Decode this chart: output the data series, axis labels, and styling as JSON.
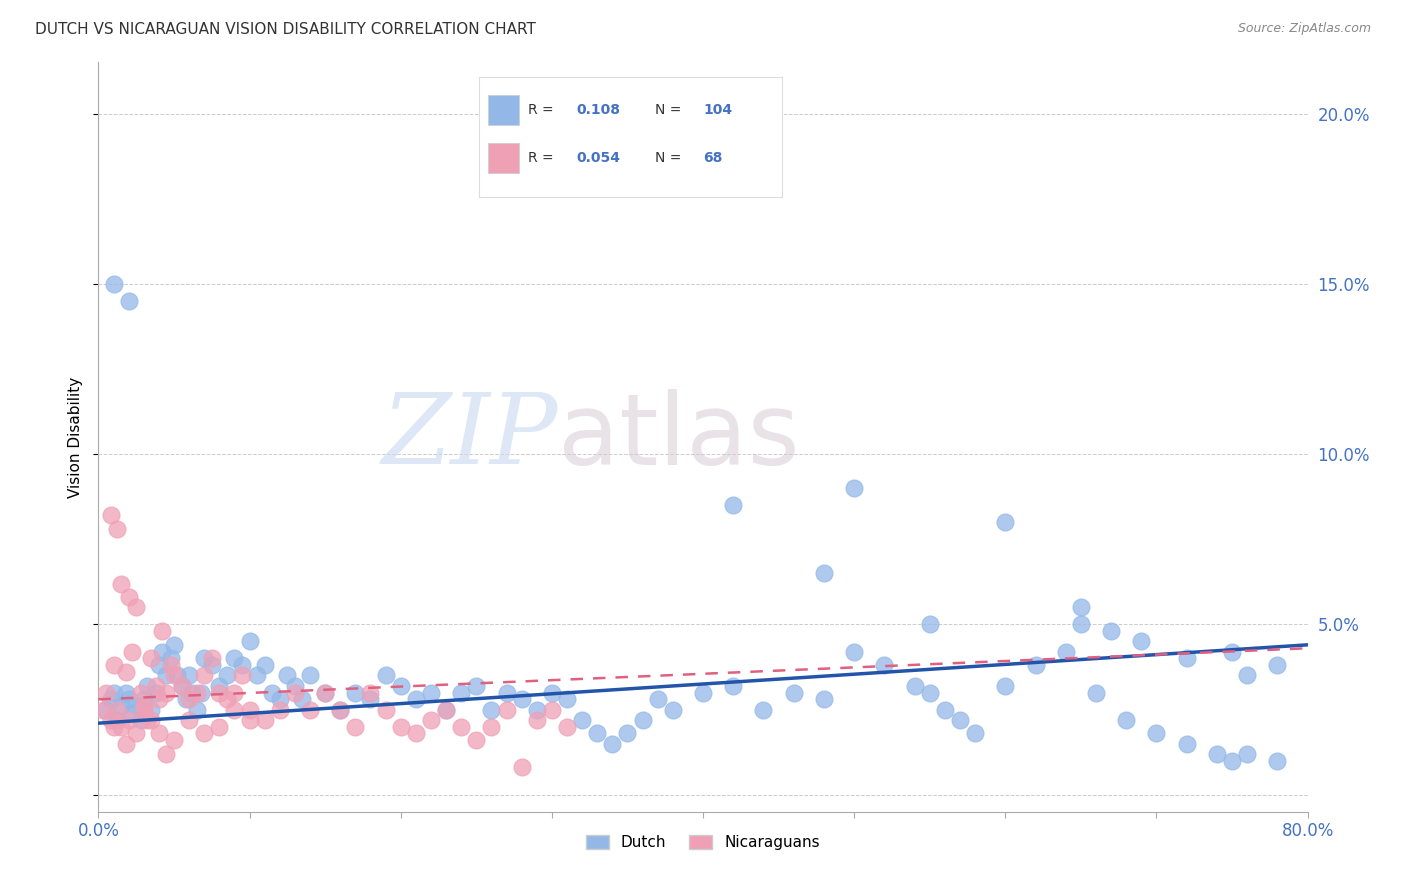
{
  "title": "DUTCH VS NICARAGUAN VISION DISABILITY CORRELATION CHART",
  "source": "Source: ZipAtlas.com",
  "ylabel": "Vision Disability",
  "xlim": [
    0.0,
    0.8
  ],
  "ylim": [
    -0.005,
    0.215
  ],
  "xticks": [
    0.0,
    0.1,
    0.2,
    0.3,
    0.4,
    0.5,
    0.6,
    0.7,
    0.8
  ],
  "yticks": [
    0.0,
    0.05,
    0.1,
    0.15,
    0.2
  ],
  "yticklabels_right": [
    "",
    "5.0%",
    "10.0%",
    "15.0%",
    "20.0%"
  ],
  "dutch_color": "#93b8e8",
  "nicaraguan_color": "#f0a0b5",
  "dutch_R": 0.108,
  "dutch_N": 104,
  "nicaraguan_R": 0.054,
  "nicaraguan_N": 68,
  "legend_label_blue": "Dutch",
  "legend_label_pink": "Nicaraguans",
  "watermark_zip": "ZIP",
  "watermark_atlas": "atlas",
  "axis_color": "#4472c4",
  "background_color": "#ffffff",
  "grid_color": "#cccccc",
  "dutch_line_x0": 0.0,
  "dutch_line_y0": 0.021,
  "dutch_line_x1": 0.8,
  "dutch_line_y1": 0.044,
  "nic_line_x0": 0.0,
  "nic_line_y0": 0.028,
  "nic_line_x1": 0.8,
  "nic_line_y1": 0.043,
  "dutch_scatter_x": [
    0.005,
    0.008,
    0.01,
    0.012,
    0.015,
    0.018,
    0.02,
    0.022,
    0.025,
    0.028,
    0.03,
    0.032,
    0.035,
    0.038,
    0.04,
    0.042,
    0.045,
    0.048,
    0.05,
    0.052,
    0.055,
    0.058,
    0.06,
    0.062,
    0.065,
    0.068,
    0.07,
    0.075,
    0.08,
    0.085,
    0.09,
    0.095,
    0.1,
    0.105,
    0.11,
    0.115,
    0.12,
    0.125,
    0.13,
    0.135,
    0.14,
    0.15,
    0.16,
    0.17,
    0.18,
    0.19,
    0.2,
    0.21,
    0.22,
    0.23,
    0.24,
    0.25,
    0.26,
    0.27,
    0.28,
    0.29,
    0.3,
    0.31,
    0.32,
    0.33,
    0.34,
    0.35,
    0.36,
    0.37,
    0.38,
    0.4,
    0.42,
    0.44,
    0.46,
    0.48,
    0.5,
    0.52,
    0.54,
    0.55,
    0.56,
    0.57,
    0.58,
    0.6,
    0.62,
    0.64,
    0.65,
    0.66,
    0.68,
    0.7,
    0.72,
    0.74,
    0.75,
    0.76,
    0.78,
    0.42,
    0.48,
    0.5,
    0.55,
    0.6,
    0.65,
    0.67,
    0.69,
    0.72,
    0.75,
    0.76,
    0.78,
    0.01,
    0.02
  ],
  "dutch_scatter_y": [
    0.025,
    0.028,
    0.03,
    0.022,
    0.026,
    0.03,
    0.028,
    0.024,
    0.026,
    0.022,
    0.028,
    0.032,
    0.025,
    0.03,
    0.038,
    0.042,
    0.035,
    0.04,
    0.044,
    0.035,
    0.032,
    0.028,
    0.035,
    0.03,
    0.025,
    0.03,
    0.04,
    0.038,
    0.032,
    0.035,
    0.04,
    0.038,
    0.045,
    0.035,
    0.038,
    0.03,
    0.028,
    0.035,
    0.032,
    0.028,
    0.035,
    0.03,
    0.025,
    0.03,
    0.028,
    0.035,
    0.032,
    0.028,
    0.03,
    0.025,
    0.03,
    0.032,
    0.025,
    0.03,
    0.028,
    0.025,
    0.03,
    0.028,
    0.022,
    0.018,
    0.015,
    0.018,
    0.022,
    0.028,
    0.025,
    0.03,
    0.032,
    0.025,
    0.03,
    0.028,
    0.042,
    0.038,
    0.032,
    0.03,
    0.025,
    0.022,
    0.018,
    0.032,
    0.038,
    0.042,
    0.05,
    0.03,
    0.022,
    0.018,
    0.015,
    0.012,
    0.01,
    0.012,
    0.01,
    0.085,
    0.065,
    0.09,
    0.05,
    0.08,
    0.055,
    0.048,
    0.045,
    0.04,
    0.042,
    0.035,
    0.038,
    0.15,
    0.145
  ],
  "nicaraguan_scatter_x": [
    0.003,
    0.005,
    0.008,
    0.01,
    0.012,
    0.015,
    0.018,
    0.02,
    0.022,
    0.025,
    0.028,
    0.03,
    0.032,
    0.035,
    0.038,
    0.04,
    0.042,
    0.045,
    0.048,
    0.05,
    0.055,
    0.06,
    0.065,
    0.07,
    0.075,
    0.08,
    0.085,
    0.09,
    0.095,
    0.1,
    0.11,
    0.12,
    0.13,
    0.14,
    0.15,
    0.16,
    0.17,
    0.18,
    0.19,
    0.2,
    0.21,
    0.22,
    0.23,
    0.24,
    0.25,
    0.26,
    0.27,
    0.28,
    0.29,
    0.3,
    0.008,
    0.01,
    0.012,
    0.015,
    0.018,
    0.02,
    0.025,
    0.03,
    0.035,
    0.04,
    0.045,
    0.05,
    0.06,
    0.07,
    0.08,
    0.09,
    0.1,
    0.31
  ],
  "nicaraguan_scatter_y": [
    0.025,
    0.03,
    0.082,
    0.038,
    0.078,
    0.062,
    0.036,
    0.058,
    0.042,
    0.055,
    0.03,
    0.026,
    0.022,
    0.04,
    0.032,
    0.028,
    0.048,
    0.03,
    0.038,
    0.035,
    0.032,
    0.028,
    0.03,
    0.035,
    0.04,
    0.03,
    0.028,
    0.03,
    0.035,
    0.025,
    0.022,
    0.025,
    0.03,
    0.025,
    0.03,
    0.025,
    0.02,
    0.03,
    0.025,
    0.02,
    0.018,
    0.022,
    0.025,
    0.02,
    0.016,
    0.02,
    0.025,
    0.008,
    0.022,
    0.025,
    0.022,
    0.02,
    0.025,
    0.02,
    0.015,
    0.022,
    0.018,
    0.025,
    0.022,
    0.018,
    0.012,
    0.016,
    0.022,
    0.018,
    0.02,
    0.025,
    0.022,
    0.02
  ]
}
